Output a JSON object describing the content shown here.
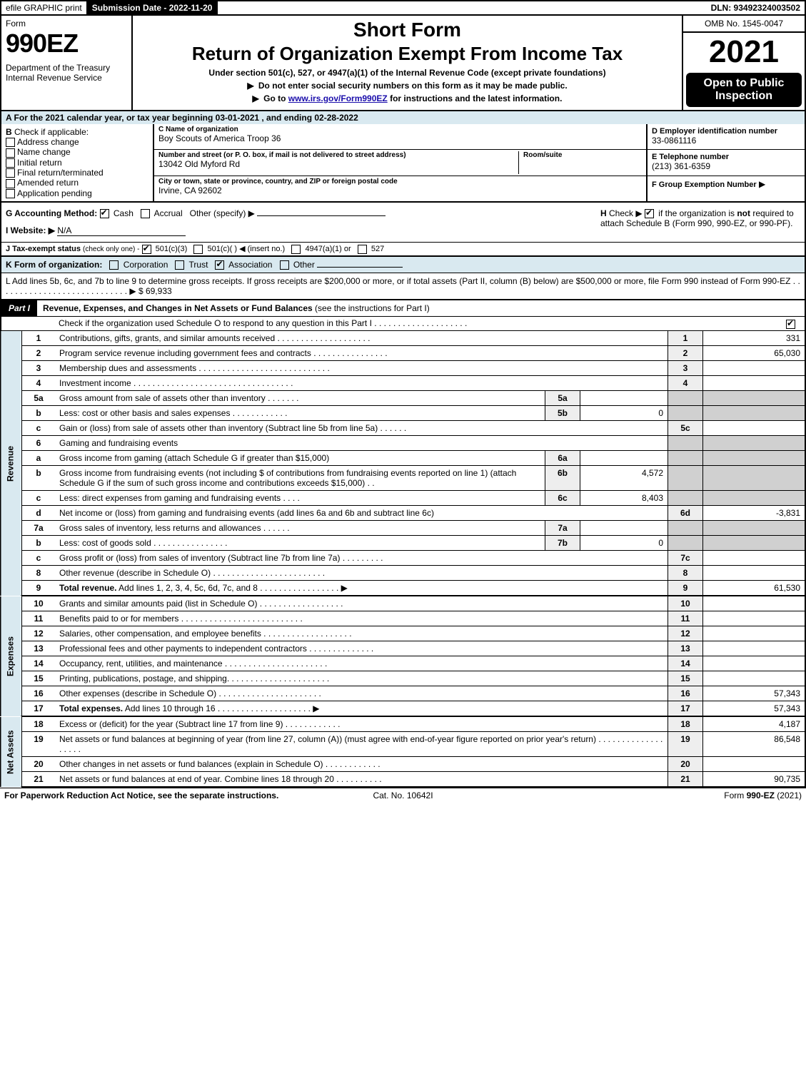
{
  "top_bar": {
    "efile": "efile GRAPHIC print",
    "submission_date_label": "Submission Date - 2022-11-20",
    "dln": "DLN: 93492324003502"
  },
  "header": {
    "form_word": "Form",
    "form_num": "990EZ",
    "dept": "Department of the Treasury\nInternal Revenue Service",
    "title1": "Short Form",
    "title2": "Return of Organization Exempt From Income Tax",
    "subtitle": "Under section 501(c), 527, or 4947(a)(1) of the Internal Revenue Code (except private foundations)",
    "instr1_prefix": "▶",
    "instr1": "Do not enter social security numbers on this form as it may be made public.",
    "instr2_prefix": "▶",
    "instr2_a": "Go to ",
    "instr2_link": "www.irs.gov/Form990EZ",
    "instr2_b": " for instructions and the latest information.",
    "omb": "OMB No. 1545-0047",
    "year": "2021",
    "open_public": "Open to Public Inspection"
  },
  "section_a": "A  For the 2021 calendar year, or tax year beginning 03-01-2021 , and ending 02-28-2022",
  "box_b": {
    "heading": "B",
    "label": "Check if applicable:",
    "items": [
      "Address change",
      "Name change",
      "Initial return",
      "Final return/terminated",
      "Amended return",
      "Application pending"
    ]
  },
  "box_c": {
    "label_c": "C Name of organization",
    "org_name": "Boy Scouts of America Troop 36",
    "label_street": "Number and street (or P. O. box, if mail is not delivered to street address)",
    "label_room": "Room/suite",
    "street": "13042 Old Myford Rd",
    "label_city": "City or town, state or province, country, and ZIP or foreign postal code",
    "city": "Irvine, CA  92602"
  },
  "box_right": {
    "d_label": "D Employer identification number",
    "d_val": "33-0861116",
    "e_label": "E Telephone number",
    "e_val": "(213) 361-6359",
    "f_label": "F Group Exemption Number",
    "f_arrow": "▶"
  },
  "line_g": {
    "label": "G Accounting Method:",
    "cash": "Cash",
    "accrual": "Accrual",
    "other": "Other (specify) ▶"
  },
  "line_h": {
    "label": "H",
    "text1": "Check ▶",
    "text2": "if the organization is ",
    "text_not": "not",
    "text3": " required to attach Schedule B (Form 990, 990-EZ, or 990-PF)."
  },
  "line_i": {
    "label": "I Website: ▶",
    "val": "N/A"
  },
  "line_j": {
    "label": "J Tax-exempt status",
    "sub": "(check only one) -",
    "opt1": "501(c)(3)",
    "opt2": "501(c)(  ) ◀ (insert no.)",
    "opt3": "4947(a)(1) or",
    "opt4": "527"
  },
  "line_k": {
    "label": "K Form of organization:",
    "opts": [
      "Corporation",
      "Trust",
      "Association",
      "Other"
    ]
  },
  "line_l": {
    "text_a": "L Add lines 5b, 6c, and 7b to line 9 to determine gross receipts. If gross receipts are $200,000 or more, or if total assets (Part II, column (B) below) are $500,000 or more, file Form 990 instead of Form 990-EZ",
    "dots": "  .  .  .  .  .  .  .  .  .  .  .  .  .  .  .  .  .  .  .  .  .  .  .  .  .  .  .  .  ▶",
    "amount": "$ 69,933"
  },
  "part1": {
    "tag": "Part I",
    "title": "Revenue, Expenses, and Changes in Net Assets or Fund Balances",
    "title_sub": "(see the instructions for Part I)",
    "schedule_o": "Check if the organization used Schedule O to respond to any question in this Part I",
    "schedule_o_dots": " .  .  .  .  .  .  .  .  .  .  .  .  .  .  .  .  .  .  .  ."
  },
  "side_labels": {
    "revenue": "Revenue",
    "expenses": "Expenses",
    "net_assets": "Net Assets"
  },
  "rows": [
    {
      "n": "1",
      "d": "Contributions, gifts, grants, and similar amounts received",
      "dots": "  .  .  .  .  .  .  .  .  .  .  .  .  .  .  .  .  .  .  .  .",
      "rn": "1",
      "rv": "331"
    },
    {
      "n": "2",
      "d": "Program service revenue including government fees and contracts",
      "dots": "  .  .  .  .  .  .  .  .  .  .  .  .  .  .  .  .",
      "rn": "2",
      "rv": "65,030"
    },
    {
      "n": "3",
      "d": "Membership dues and assessments",
      "dots": "  .  .  .  .  .  .  .  .  .  .  .  .  .  .  .  .  .  .  .  .  .  .  .  .  .  .  .  .",
      "rn": "3",
      "rv": ""
    },
    {
      "n": "4",
      "d": "Investment income",
      "dots": "  .  .  .  .  .  .  .  .  .  .  .  .  .  .  .  .  .  .  .  .  .  .  .  .  .  .  .  .  .  .  .  .  .  .",
      "rn": "4",
      "rv": ""
    },
    {
      "n": "5a",
      "d": "Gross amount from sale of assets other than inventory",
      "dots": "  .  .  .  .  .  .  .",
      "sn": "5a",
      "sv": "",
      "shaded": true
    },
    {
      "n": "b",
      "d": "Less: cost or other basis and sales expenses",
      "dots": "  .  .  .  .  .  .  .  .  .  .  .  .",
      "sn": "5b",
      "sv": "0",
      "shaded": true
    },
    {
      "n": "c",
      "d": "Gain or (loss) from sale of assets other than inventory (Subtract line 5b from line 5a)",
      "dots": "  .  .  .  .  .  .",
      "rn": "5c",
      "rv": ""
    },
    {
      "n": "6",
      "d": "Gaming and fundraising events",
      "dots": "",
      "shaded": true,
      "no_rn": true
    },
    {
      "n": "a",
      "d": "Gross income from gaming (attach Schedule G if greater than $15,000)",
      "dots": "",
      "sn": "6a",
      "sv": "",
      "shaded": true
    },
    {
      "n": "b",
      "d": "Gross income from fundraising events (not including $                         of contributions from fundraising events reported on line 1) (attach Schedule G if the sum of such gross income and contributions exceeds $15,000)",
      "dots": "  .  .",
      "sn": "6b",
      "sv": "4,572",
      "shaded": true,
      "multiline": true
    },
    {
      "n": "c",
      "d": "Less: direct expenses from gaming and fundraising events",
      "dots": "  .  .  .  .",
      "sn": "6c",
      "sv": "8,403",
      "shaded": true
    },
    {
      "n": "d",
      "d": "Net income or (loss) from gaming and fundraising events (add lines 6a and 6b and subtract line 6c)",
      "dots": "",
      "rn": "6d",
      "rv": "-3,831"
    },
    {
      "n": "7a",
      "d": "Gross sales of inventory, less returns and allowances",
      "dots": "  .  .  .  .  .  .",
      "sn": "7a",
      "sv": "",
      "shaded": true
    },
    {
      "n": "b",
      "d": "Less: cost of goods sold",
      "dots": "  .  .  .  .  .  .  .  .  .  .  .  .  .  .  .  .",
      "sn": "7b",
      "sv": "0",
      "shaded": true
    },
    {
      "n": "c",
      "d": "Gross profit or (loss) from sales of inventory (Subtract line 7b from line 7a)",
      "dots": "  .  .  .  .  .  .  .  .  .",
      "rn": "7c",
      "rv": ""
    },
    {
      "n": "8",
      "d": "Other revenue (describe in Schedule O)",
      "dots": "  .  .  .  .  .  .  .  .  .  .  .  .  .  .  .  .  .  .  .  .  .  .  .  .",
      "rn": "8",
      "rv": ""
    },
    {
      "n": "9",
      "d": "Total revenue. Add lines 1, 2, 3, 4, 5c, 6d, 7c, and 8",
      "dots": "  .  .  .  .  .  .  .  .  .  .  .  .  .  .  .  .  .  ▶",
      "rn": "9",
      "rv": "61,530",
      "bold": true
    }
  ],
  "expense_rows": [
    {
      "n": "10",
      "d": "Grants and similar amounts paid (list in Schedule O)",
      "dots": "  .  .  .  .  .  .  .  .  .  .  .  .  .  .  .  .  .  .",
      "rn": "10",
      "rv": ""
    },
    {
      "n": "11",
      "d": "Benefits paid to or for members",
      "dots": "  .  .  .  .  .  .  .  .  .  .  .  .  .  .  .  .  .  .  .  .  .  .  .  .  .  .",
      "rn": "11",
      "rv": ""
    },
    {
      "n": "12",
      "d": "Salaries, other compensation, and employee benefits",
      "dots": "  .  .  .  .  .  .  .  .  .  .  .  .  .  .  .  .  .  .  .",
      "rn": "12",
      "rv": ""
    },
    {
      "n": "13",
      "d": "Professional fees and other payments to independent contractors",
      "dots": "  .  .  .  .  .  .  .  .  .  .  .  .  .  .",
      "rn": "13",
      "rv": ""
    },
    {
      "n": "14",
      "d": "Occupancy, rent, utilities, and maintenance",
      "dots": "  .  .  .  .  .  .  .  .  .  .  .  .  .  .  .  .  .  .  .  .  .  .",
      "rn": "14",
      "rv": ""
    },
    {
      "n": "15",
      "d": "Printing, publications, postage, and shipping.",
      "dots": "  .  .  .  .  .  .  .  .  .  .  .  .  .  .  .  .  .  .  .  .  .",
      "rn": "15",
      "rv": ""
    },
    {
      "n": "16",
      "d": "Other expenses (describe in Schedule O)",
      "dots": "  .  .  .  .  .  .  .  .  .  .  .  .  .  .  .  .  .  .  .  .  .  .",
      "rn": "16",
      "rv": "57,343"
    },
    {
      "n": "17",
      "d": "Total expenses. Add lines 10 through 16",
      "dots": "  .  .  .  .  .  .  .  .  .  .  .  .  .  .  .  .  .  .  .  .  ▶",
      "rn": "17",
      "rv": "57,343",
      "bold": true
    }
  ],
  "netasset_rows": [
    {
      "n": "18",
      "d": "Excess or (deficit) for the year (Subtract line 17 from line 9)",
      "dots": "  .  .  .  .  .  .  .  .  .  .  .  .",
      "rn": "18",
      "rv": "4,187"
    },
    {
      "n": "19",
      "d": "Net assets or fund balances at beginning of year (from line 27, column (A)) (must agree with end-of-year figure reported on prior year's return)",
      "dots": "  .  .  .  .  .  .  .  .  .  .  .  .  .  .  .  .  .  .  .",
      "rn": "19",
      "rv": "86,548",
      "multiline": true
    },
    {
      "n": "20",
      "d": "Other changes in net assets or fund balances (explain in Schedule O)",
      "dots": "  .  .  .  .  .  .  .  .  .  .  .  .",
      "rn": "20",
      "rv": ""
    },
    {
      "n": "21",
      "d": "Net assets or fund balances at end of year. Combine lines 18 through 20",
      "dots": "  .  .  .  .  .  .  .  .  .  .",
      "rn": "21",
      "rv": "90,735"
    }
  ],
  "footer": {
    "left": "For Paperwork Reduction Act Notice, see the separate instructions.",
    "center": "Cat. No. 10642I",
    "right_a": "Form ",
    "right_b": "990-EZ",
    "right_c": " (2021)"
  }
}
